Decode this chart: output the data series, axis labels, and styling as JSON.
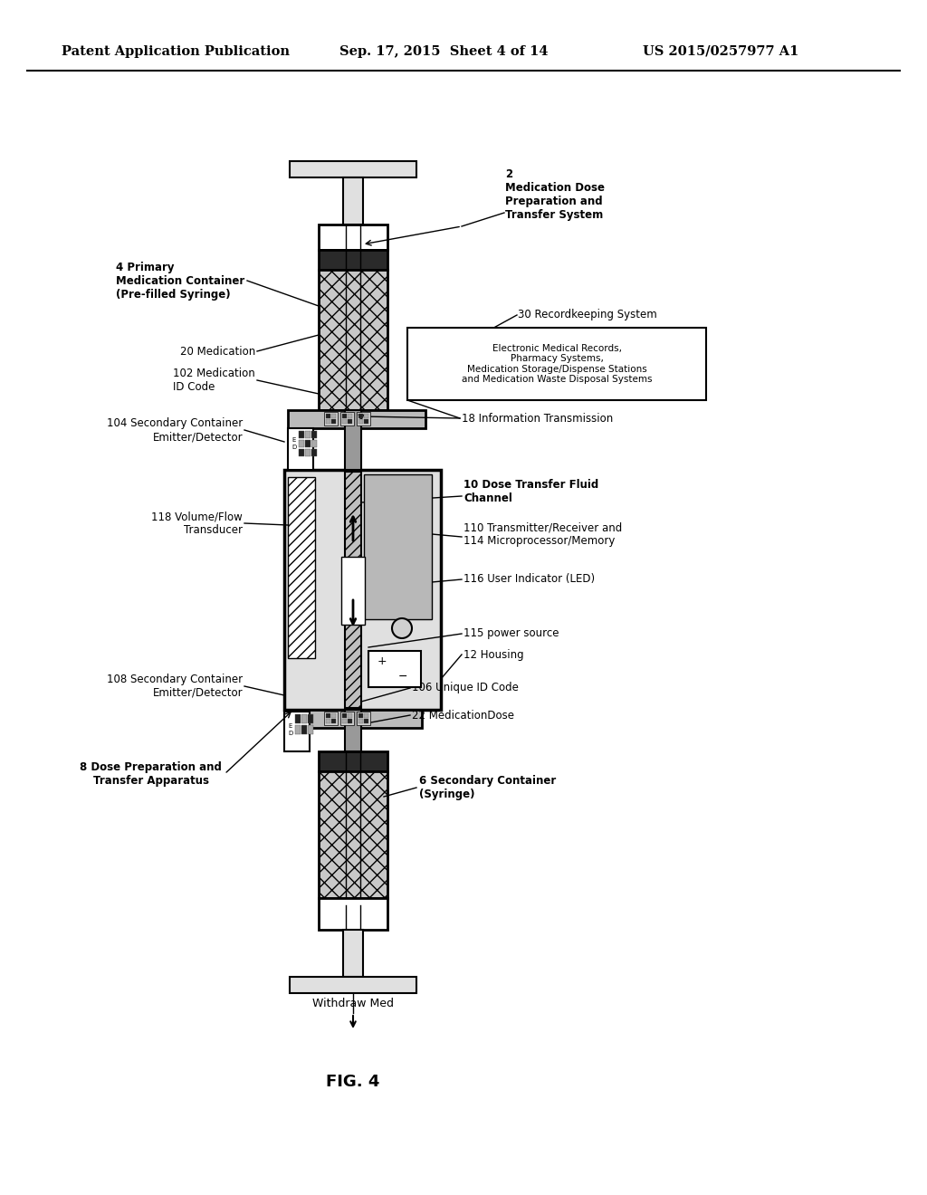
{
  "bg_color": "#ffffff",
  "header_left": "Patent Application Publication",
  "header_mid": "Sep. 17, 2015  Sheet 4 of 14",
  "header_right": "US 2015/0257977 A1",
  "fig_label": "FIG. 4"
}
